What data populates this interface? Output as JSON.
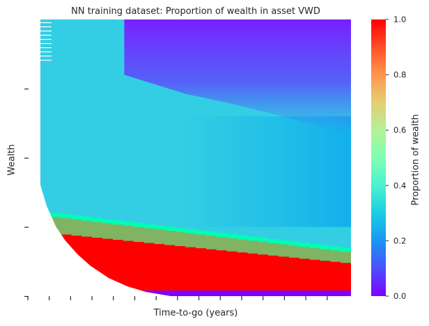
{
  "chart_data": {
    "type": "heatmap",
    "title": "NN training dataset: Proportion of wealth in asset VWD",
    "xlabel": "Time-to-go (years)",
    "ylabel": "Wealth",
    "colorbar": {
      "label": "Proportion of wealth",
      "range": [
        0.0,
        1.0
      ],
      "ticks": [
        "0.0",
        "0.2",
        "0.4",
        "0.6",
        "0.8",
        "1.0"
      ],
      "colormap": "rainbow"
    },
    "x_tick_count": 15,
    "y_tick_count": 4,
    "x_tick_labels": [],
    "y_tick_labels": [],
    "grid": false,
    "description_levels": {
      "upper_region_proportion": 0.3,
      "middle_region_proportion": 0.25,
      "low_wealth_band_proportion": 1.0,
      "lowest_wealth_proportion": 0.0
    }
  }
}
